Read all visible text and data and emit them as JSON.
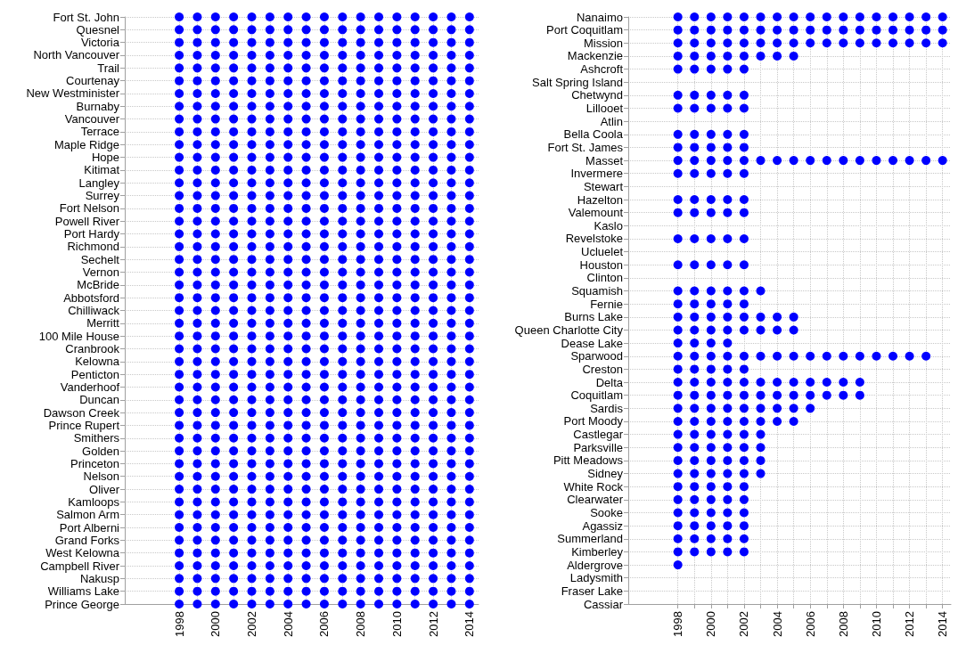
{
  "chart_data": [
    {
      "type": "scatter",
      "orientation": "horizontal",
      "marker": "circle",
      "grid": true,
      "categories": [
        "Fort St. John",
        "Quesnel",
        "Victoria",
        "North Vancouver",
        "Trail",
        "Courtenay",
        "New Westminister",
        "Burnaby",
        "Vancouver",
        "Terrace",
        "Maple Ridge",
        "Hope",
        "Kitimat",
        "Langley",
        "Surrey",
        "Fort Nelson",
        "Powell River",
        "Port Hardy",
        "Richmond",
        "Sechelt",
        "Vernon",
        "McBride",
        "Abbotsford",
        "Chilliwack",
        "Merritt",
        "100 Mile House",
        "Cranbrook",
        "Kelowna",
        "Penticton",
        "Vanderhoof",
        "Duncan",
        "Dawson Creek",
        "Prince Rupert",
        "Smithers",
        "Golden",
        "Princeton",
        "Nelson",
        "Oliver",
        "Kamloops",
        "Salmon Arm",
        "Port Alberni",
        "Grand Forks",
        "West Kelowna",
        "Campbell River",
        "Nakusp",
        "Williams Lake",
        "Prince George"
      ],
      "xlim": [
        1995,
        2014.5
      ],
      "xticks": [
        1998,
        {
          "value": 1999,
          "label": null
        },
        2000,
        {
          "value": 2001,
          "label": null
        },
        2002,
        {
          "value": 2003,
          "label": null
        },
        2004,
        {
          "value": 2005,
          "label": null
        },
        2006,
        {
          "value": 2007,
          "label": null
        },
        2008,
        {
          "value": 2009,
          "label": null
        },
        2010,
        {
          "value": 2011,
          "label": null
        },
        2012,
        {
          "value": 2013,
          "label": null
        },
        2014
      ],
      "series": [
        {
          "color": "#0000ff",
          "values": [
            1998,
            1998,
            1998,
            1998,
            1998,
            1998,
            1998,
            1998,
            1998,
            1998,
            1998,
            1998,
            1998,
            1998,
            1998,
            1998,
            1998,
            1998,
            1998,
            1998,
            1998,
            1998,
            1998,
            1998,
            1998,
            1998,
            1998,
            1998,
            1998,
            1998,
            1998,
            1998,
            1998,
            1998,
            1998,
            1998,
            1998,
            1998,
            1998,
            1998,
            1998,
            1998,
            1998,
            1998,
            1998,
            1998,
            1998
          ]
        },
        {
          "color": "#0000ff",
          "values": [
            1999,
            1999,
            1999,
            1999,
            1999,
            1999,
            1999,
            1999,
            1999,
            1999,
            1999,
            1999,
            1999,
            1999,
            1999,
            1999,
            1999,
            1999,
            1999,
            1999,
            1999,
            1999,
            1999,
            1999,
            1999,
            1999,
            1999,
            1999,
            1999,
            1999,
            1999,
            1999,
            1999,
            1999,
            1999,
            1999,
            1999,
            1999,
            1999,
            1999,
            1999,
            1999,
            1999,
            1999,
            1999,
            1999,
            1999
          ]
        },
        {
          "color": "#0000ff",
          "values": [
            2000,
            2000,
            2000,
            2000,
            2000,
            2000,
            2000,
            2000,
            2000,
            2000,
            2000,
            2000,
            2000,
            2000,
            2000,
            2000,
            2000,
            2000,
            2000,
            2000,
            2000,
            2000,
            2000,
            2000,
            2000,
            2000,
            2000,
            2000,
            2000,
            2000,
            2000,
            2000,
            2000,
            2000,
            2000,
            2000,
            2000,
            2000,
            2000,
            2000,
            2000,
            2000,
            2000,
            2000,
            2000,
            2000,
            2000
          ]
        },
        {
          "color": "#0000ff",
          "values": [
            2001,
            2001,
            2001,
            2001,
            2001,
            2001,
            2001,
            2001,
            2001,
            2001,
            2001,
            2001,
            2001,
            2001,
            2001,
            2001,
            2001,
            2001,
            2001,
            2001,
            2001,
            2001,
            2001,
            2001,
            2001,
            2001,
            2001,
            2001,
            2001,
            2001,
            2001,
            2001,
            2001,
            2001,
            2001,
            2001,
            2001,
            2001,
            2001,
            2001,
            2001,
            2001,
            2001,
            2001,
            2001,
            2001,
            2001
          ]
        },
        {
          "color": "#0000ff",
          "values": [
            2002,
            2002,
            2002,
            2002,
            2002,
            2002,
            2002,
            2002,
            2002,
            2002,
            2002,
            2002,
            2002,
            2002,
            2002,
            2002,
            2002,
            2002,
            2002,
            2002,
            2002,
            2002,
            2002,
            2002,
            2002,
            2002,
            2002,
            2002,
            2002,
            2002,
            2002,
            2002,
            2002,
            2002,
            2002,
            2002,
            2002,
            2002,
            2002,
            2002,
            2002,
            2002,
            2002,
            2002,
            2002,
            2002,
            2002
          ]
        },
        {
          "color": "#0000ff",
          "values": [
            2003,
            2003,
            2003,
            2003,
            2003,
            2003,
            2003,
            2003,
            2003,
            2003,
            2003,
            2003,
            2003,
            2003,
            2003,
            2003,
            2003,
            2003,
            2003,
            2003,
            2003,
            2003,
            2003,
            2003,
            2003,
            2003,
            2003,
            2003,
            2003,
            2003,
            2003,
            2003,
            2003,
            2003,
            2003,
            2003,
            2003,
            2003,
            2003,
            2003,
            2003,
            2003,
            2003,
            2003,
            2003,
            2003,
            2003
          ]
        },
        {
          "color": "#0000ff",
          "values": [
            2004,
            2004,
            2004,
            2004,
            2004,
            2004,
            2004,
            2004,
            2004,
            2004,
            2004,
            2004,
            2004,
            2004,
            2004,
            2004,
            2004,
            2004,
            2004,
            2004,
            2004,
            2004,
            2004,
            2004,
            2004,
            2004,
            2004,
            2004,
            2004,
            2004,
            2004,
            2004,
            2004,
            2004,
            2004,
            2004,
            2004,
            2004,
            2004,
            2004,
            2004,
            2004,
            2004,
            2004,
            2004,
            2004,
            2004
          ]
        },
        {
          "color": "#0000ff",
          "values": [
            2005,
            2005,
            2005,
            2005,
            2005,
            2005,
            2005,
            2005,
            2005,
            2005,
            2005,
            2005,
            2005,
            2005,
            2005,
            2005,
            2005,
            2005,
            2005,
            2005,
            2005,
            2005,
            2005,
            2005,
            2005,
            2005,
            2005,
            2005,
            2005,
            2005,
            2005,
            2005,
            2005,
            2005,
            2005,
            2005,
            2005,
            2005,
            2005,
            2005,
            2005,
            2005,
            2005,
            2005,
            2005,
            2005,
            2005
          ]
        },
        {
          "color": "#0000ff",
          "values": [
            2006,
            2006,
            2006,
            2006,
            2006,
            2006,
            2006,
            2006,
            2006,
            2006,
            2006,
            2006,
            2006,
            2006,
            2006,
            2006,
            2006,
            2006,
            2006,
            2006,
            2006,
            2006,
            2006,
            2006,
            2006,
            2006,
            2006,
            2006,
            2006,
            2006,
            2006,
            2006,
            2006,
            2006,
            2006,
            2006,
            2006,
            2006,
            2006,
            2006,
            2006,
            2006,
            2006,
            2006,
            2006,
            2006,
            2006
          ]
        },
        {
          "color": "#0000ff",
          "values": [
            2007,
            2007,
            2007,
            2007,
            2007,
            2007,
            2007,
            2007,
            2007,
            2007,
            2007,
            2007,
            2007,
            2007,
            2007,
            2007,
            2007,
            2007,
            2007,
            2007,
            2007,
            2007,
            2007,
            2007,
            2007,
            2007,
            2007,
            2007,
            2007,
            2007,
            2007,
            2007,
            2007,
            2007,
            2007,
            2007,
            2007,
            2007,
            2007,
            2007,
            2007,
            2007,
            2007,
            2007,
            2007,
            2007,
            2007
          ]
        },
        {
          "color": "#0000ff",
          "values": [
            2008,
            2008,
            2008,
            2008,
            2008,
            2008,
            2008,
            2008,
            2008,
            2008,
            2008,
            2008,
            2008,
            2008,
            2008,
            2008,
            2008,
            2008,
            2008,
            2008,
            2008,
            2008,
            2008,
            2008,
            2008,
            2008,
            2008,
            2008,
            2008,
            2008,
            2008,
            2008,
            2008,
            2008,
            2008,
            2008,
            2008,
            2008,
            2008,
            2008,
            2008,
            2008,
            2008,
            2008,
            2008,
            2008,
            2008
          ]
        },
        {
          "color": "#0000ff",
          "values": [
            2009,
            2009,
            2009,
            2009,
            2009,
            2009,
            2009,
            2009,
            2009,
            2009,
            2009,
            2009,
            2009,
            2009,
            2009,
            2009,
            2009,
            2009,
            2009,
            2009,
            2009,
            2009,
            2009,
            2009,
            2009,
            2009,
            2009,
            2009,
            2009,
            2009,
            2009,
            2009,
            2009,
            2009,
            2009,
            2009,
            2009,
            2009,
            2009,
            2009,
            2009,
            2009,
            2009,
            2009,
            2009,
            2009,
            2009
          ]
        },
        {
          "color": "#0000ff",
          "values": [
            2010,
            2010,
            2010,
            2010,
            2010,
            2010,
            2010,
            2010,
            2010,
            2010,
            2010,
            2010,
            2010,
            2010,
            2010,
            2010,
            2010,
            2010,
            2010,
            2010,
            2010,
            2010,
            2010,
            2010,
            2010,
            2010,
            2010,
            2010,
            2010,
            2010,
            2010,
            2010,
            2010,
            2010,
            2010,
            2010,
            2010,
            2010,
            2010,
            2010,
            2010,
            2010,
            2010,
            2010,
            2010,
            2010,
            2010
          ]
        },
        {
          "color": "#0000ff",
          "values": [
            2011,
            2011,
            2011,
            2011,
            2011,
            2011,
            2011,
            2011,
            2011,
            2011,
            2011,
            2011,
            2011,
            2011,
            2011,
            2011,
            2011,
            2011,
            2011,
            2011,
            2011,
            2011,
            2011,
            2011,
            2011,
            2011,
            2011,
            2011,
            2011,
            2011,
            2011,
            2011,
            2011,
            2011,
            2011,
            2011,
            2011,
            2011,
            2011,
            2011,
            2011,
            2011,
            2011,
            2011,
            2011,
            2011,
            2011
          ]
        },
        {
          "color": "#0000ff",
          "values": [
            2012,
            2012,
            2012,
            2012,
            2012,
            2012,
            2012,
            2012,
            2012,
            2012,
            2012,
            2012,
            2012,
            2012,
            2012,
            2012,
            2012,
            2012,
            2012,
            2012,
            2012,
            2012,
            2012,
            2012,
            2012,
            2012,
            2012,
            2012,
            2012,
            2012,
            2012,
            2012,
            2012,
            2012,
            2012,
            2012,
            2012,
            2012,
            2012,
            2012,
            2012,
            2012,
            2012,
            2012,
            2012,
            2012,
            2012
          ]
        },
        {
          "color": "#0000ff",
          "values": [
            2013,
            2013,
            2013,
            2013,
            2013,
            2013,
            2013,
            2013,
            2013,
            2013,
            2013,
            2013,
            2013,
            2013,
            2013,
            2013,
            2013,
            2013,
            2013,
            2013,
            2013,
            2013,
            2013,
            2013,
            2013,
            2013,
            2013,
            2013,
            2013,
            2013,
            2013,
            2013,
            2013,
            2013,
            2013,
            2013,
            2013,
            2013,
            2013,
            2013,
            2013,
            2013,
            2013,
            2013,
            2013,
            2013,
            2013
          ]
        },
        {
          "color": "#0000ff",
          "values": [
            2014,
            2014,
            2014,
            2014,
            2014,
            2014,
            2014,
            2014,
            2014,
            2014,
            2014,
            2014,
            2014,
            2014,
            2014,
            2014,
            2014,
            2014,
            2014,
            2014,
            2014,
            2014,
            2014,
            2014,
            2014,
            2014,
            2014,
            2014,
            2014,
            2014,
            2014,
            2014,
            2014,
            2014,
            2014,
            2014,
            2014,
            2014,
            2014,
            2014,
            2014,
            2014,
            2014,
            2014,
            2014,
            2014,
            2014
          ]
        }
      ]
    },
    {
      "type": "scatter",
      "orientation": "horizontal",
      "marker": "circle",
      "grid": true,
      "categories": [
        "Nanaimo",
        "Port Coquitlam",
        "Mission",
        "Mackenzie",
        "Ashcroft",
        "Salt Spring Island",
        "Chetwynd",
        "Lillooet",
        "Atlin",
        "Bella Coola",
        "Fort St. James",
        "Masset",
        "Invermere",
        "Stewart",
        "Hazelton",
        "Valemount",
        "Kaslo",
        "Revelstoke",
        "Ucluelet",
        "Houston",
        "Clinton",
        "Squamish",
        "Fernie",
        "Burns Lake",
        "Queen Charlotte City",
        "Dease Lake",
        "Sparwood",
        "Creston",
        "Delta",
        "Coquitlam",
        "Sardis",
        "Port Moody",
        "Castlegar",
        "Parksville",
        "Pitt Meadows",
        "Sidney",
        "White Rock",
        "Clearwater",
        "Sooke",
        "Agassiz",
        "Summerland",
        "Kimberley",
        "Aldergrove",
        "Ladysmith",
        "Fraser Lake",
        "Cassiar"
      ],
      "xlim": [
        1995,
        2014.5
      ],
      "xticks": [
        1998,
        {
          "value": 1999,
          "label": null
        },
        2000,
        {
          "value": 2001,
          "label": null
        },
        2002,
        {
          "value": 2003,
          "label": null
        },
        2004,
        {
          "value": 2005,
          "label": null
        },
        2006,
        {
          "value": 2007,
          "label": null
        },
        2008,
        {
          "value": 2009,
          "label": null
        },
        2010,
        {
          "value": 2011,
          "label": null
        },
        2012,
        {
          "value": 2013,
          "label": null
        },
        2014
      ],
      "series": [
        {
          "color": "#0000ff",
          "values": [
            1998,
            1998,
            1998,
            1998,
            1998,
            null,
            1998,
            1998,
            null,
            1998,
            1998,
            1998,
            1998,
            null,
            1998,
            1998,
            null,
            1998,
            null,
            1998,
            null,
            1998,
            1998,
            1998,
            1998,
            1998,
            1998,
            1998,
            1998,
            1998,
            1998,
            1998,
            1998,
            1998,
            1998,
            1998,
            1998,
            1998,
            1998,
            1998,
            1998,
            1998,
            1998,
            null,
            null,
            null
          ]
        },
        {
          "color": "#0000ff",
          "values": [
            1999,
            1999,
            1999,
            1999,
            1999,
            null,
            1999,
            1999,
            null,
            1999,
            1999,
            1999,
            1999,
            null,
            1999,
            1999,
            null,
            1999,
            null,
            1999,
            null,
            1999,
            1999,
            1999,
            1999,
            1999,
            1999,
            1999,
            1999,
            1999,
            1999,
            1999,
            1999,
            1999,
            1999,
            1999,
            1999,
            1999,
            1999,
            1999,
            1999,
            1999,
            null,
            null,
            null,
            null
          ]
        },
        {
          "color": "#0000ff",
          "values": [
            2000,
            2000,
            2000,
            2000,
            2000,
            null,
            2000,
            2000,
            null,
            2000,
            2000,
            2000,
            2000,
            null,
            2000,
            2000,
            null,
            2000,
            null,
            2000,
            null,
            2000,
            2000,
            2000,
            2000,
            2000,
            2000,
            2000,
            2000,
            2000,
            2000,
            2000,
            2000,
            2000,
            2000,
            2000,
            2000,
            2000,
            2000,
            2000,
            2000,
            2000,
            null,
            null,
            null,
            null
          ]
        },
        {
          "color": "#0000ff",
          "values": [
            2001,
            2001,
            2001,
            2001,
            2001,
            null,
            2001,
            2001,
            null,
            2001,
            2001,
            2001,
            2001,
            null,
            2001,
            2001,
            null,
            2001,
            null,
            2001,
            null,
            2001,
            2001,
            2001,
            2001,
            2001,
            2001,
            2001,
            2001,
            2001,
            2001,
            2001,
            2001,
            2001,
            2001,
            2001,
            2001,
            2001,
            2001,
            2001,
            2001,
            2001,
            null,
            null,
            null,
            null
          ]
        },
        {
          "color": "#0000ff",
          "values": [
            2002,
            2002,
            2002,
            2002,
            2002,
            null,
            2002,
            2002,
            null,
            2002,
            2002,
            2002,
            2002,
            null,
            2002,
            2002,
            null,
            2002,
            null,
            2002,
            null,
            2002,
            2002,
            2002,
            2002,
            null,
            2002,
            2002,
            2002,
            2002,
            2002,
            2002,
            2002,
            2002,
            2002,
            2002,
            2002,
            2002,
            2002,
            2002,
            2002,
            2002,
            null,
            null,
            null,
            null
          ]
        },
        {
          "color": "#0000ff",
          "values": [
            2003,
            2003,
            2003,
            2003,
            null,
            null,
            null,
            null,
            null,
            null,
            null,
            2003,
            null,
            null,
            null,
            null,
            null,
            null,
            null,
            null,
            null,
            2003,
            null,
            2003,
            2003,
            null,
            2003,
            null,
            2003,
            2003,
            2003,
            2003,
            2003,
            2003,
            2003,
            2003,
            null,
            null,
            null,
            null,
            null,
            null,
            null,
            null,
            null,
            null
          ]
        },
        {
          "color": "#0000ff",
          "values": [
            2004,
            2004,
            2004,
            2004,
            null,
            null,
            null,
            null,
            null,
            null,
            null,
            2004,
            null,
            null,
            null,
            null,
            null,
            null,
            null,
            null,
            null,
            null,
            null,
            2004,
            2004,
            null,
            2004,
            null,
            2004,
            2004,
            2004,
            2004,
            null,
            null,
            null,
            null,
            null,
            null,
            null,
            null,
            null,
            null,
            null,
            null,
            null,
            null
          ]
        },
        {
          "color": "#0000ff",
          "values": [
            2005,
            2005,
            2005,
            2005,
            null,
            null,
            null,
            null,
            null,
            null,
            null,
            2005,
            null,
            null,
            null,
            null,
            null,
            null,
            null,
            null,
            null,
            null,
            null,
            2005,
            2005,
            null,
            2005,
            null,
            2005,
            2005,
            2005,
            2005,
            null,
            null,
            null,
            null,
            null,
            null,
            null,
            null,
            null,
            null,
            null,
            null,
            null,
            null
          ]
        },
        {
          "color": "#0000ff",
          "values": [
            2006,
            2006,
            2006,
            null,
            null,
            null,
            null,
            null,
            null,
            null,
            null,
            2006,
            null,
            null,
            null,
            null,
            null,
            null,
            null,
            null,
            null,
            null,
            null,
            null,
            null,
            null,
            2006,
            null,
            2006,
            2006,
            2006,
            null,
            null,
            null,
            null,
            null,
            null,
            null,
            null,
            null,
            null,
            null,
            null,
            null,
            null,
            null
          ]
        },
        {
          "color": "#0000ff",
          "values": [
            2007,
            2007,
            2007,
            null,
            null,
            null,
            null,
            null,
            null,
            null,
            null,
            2007,
            null,
            null,
            null,
            null,
            null,
            null,
            null,
            null,
            null,
            null,
            null,
            null,
            null,
            null,
            2007,
            null,
            2007,
            2007,
            null,
            null,
            null,
            null,
            null,
            null,
            null,
            null,
            null,
            null,
            null,
            null,
            null,
            null,
            null,
            null
          ]
        },
        {
          "color": "#0000ff",
          "values": [
            2008,
            2008,
            2008,
            null,
            null,
            null,
            null,
            null,
            null,
            null,
            null,
            2008,
            null,
            null,
            null,
            null,
            null,
            null,
            null,
            null,
            null,
            null,
            null,
            null,
            null,
            null,
            2008,
            null,
            2008,
            2008,
            null,
            null,
            null,
            null,
            null,
            null,
            null,
            null,
            null,
            null,
            null,
            null,
            null,
            null,
            null,
            null
          ]
        },
        {
          "color": "#0000ff",
          "values": [
            2009,
            2009,
            2009,
            null,
            null,
            null,
            null,
            null,
            null,
            null,
            null,
            2009,
            null,
            null,
            null,
            null,
            null,
            null,
            null,
            null,
            null,
            null,
            null,
            null,
            null,
            null,
            2009,
            null,
            2009,
            2009,
            null,
            null,
            null,
            null,
            null,
            null,
            null,
            null,
            null,
            null,
            null,
            null,
            null,
            null,
            null,
            null
          ]
        },
        {
          "color": "#0000ff",
          "values": [
            2010,
            2010,
            2010,
            null,
            null,
            null,
            null,
            null,
            null,
            null,
            null,
            2010,
            null,
            null,
            null,
            null,
            null,
            null,
            null,
            null,
            null,
            null,
            null,
            null,
            null,
            null,
            2010,
            null,
            null,
            null,
            null,
            null,
            null,
            null,
            null,
            null,
            null,
            null,
            null,
            null,
            null,
            null,
            null,
            null,
            null,
            null
          ]
        },
        {
          "color": "#0000ff",
          "values": [
            2011,
            2011,
            2011,
            null,
            null,
            null,
            null,
            null,
            null,
            null,
            null,
            2011,
            null,
            null,
            null,
            null,
            null,
            null,
            null,
            null,
            null,
            null,
            null,
            null,
            null,
            null,
            2011,
            null,
            null,
            null,
            null,
            null,
            null,
            null,
            null,
            null,
            null,
            null,
            null,
            null,
            null,
            null,
            null,
            null,
            null,
            null
          ]
        },
        {
          "color": "#0000ff",
          "values": [
            2012,
            2012,
            2012,
            null,
            null,
            null,
            null,
            null,
            null,
            null,
            null,
            2012,
            null,
            null,
            null,
            null,
            null,
            null,
            null,
            null,
            null,
            null,
            null,
            null,
            null,
            null,
            2012,
            null,
            null,
            null,
            null,
            null,
            null,
            null,
            null,
            null,
            null,
            null,
            null,
            null,
            null,
            null,
            null,
            null,
            null,
            null
          ]
        },
        {
          "color": "#0000ff",
          "values": [
            2013,
            2013,
            2013,
            null,
            null,
            null,
            null,
            null,
            null,
            null,
            null,
            2013,
            null,
            null,
            null,
            null,
            null,
            null,
            null,
            null,
            null,
            null,
            null,
            null,
            null,
            null,
            2013,
            null,
            null,
            null,
            null,
            null,
            null,
            null,
            null,
            null,
            null,
            null,
            null,
            null,
            null,
            null,
            null,
            null,
            null,
            null
          ]
        },
        {
          "color": "#0000ff",
          "values": [
            2014,
            2014,
            2014,
            null,
            null,
            null,
            null,
            null,
            null,
            null,
            null,
            2014,
            null,
            null,
            null,
            null,
            null,
            null,
            null,
            null,
            null,
            null,
            null,
            null,
            null,
            null,
            null,
            null,
            null,
            null,
            null,
            null,
            null,
            null,
            null,
            null,
            null,
            null,
            null,
            null,
            null,
            null,
            null,
            null,
            null,
            null
          ]
        }
      ]
    }
  ]
}
